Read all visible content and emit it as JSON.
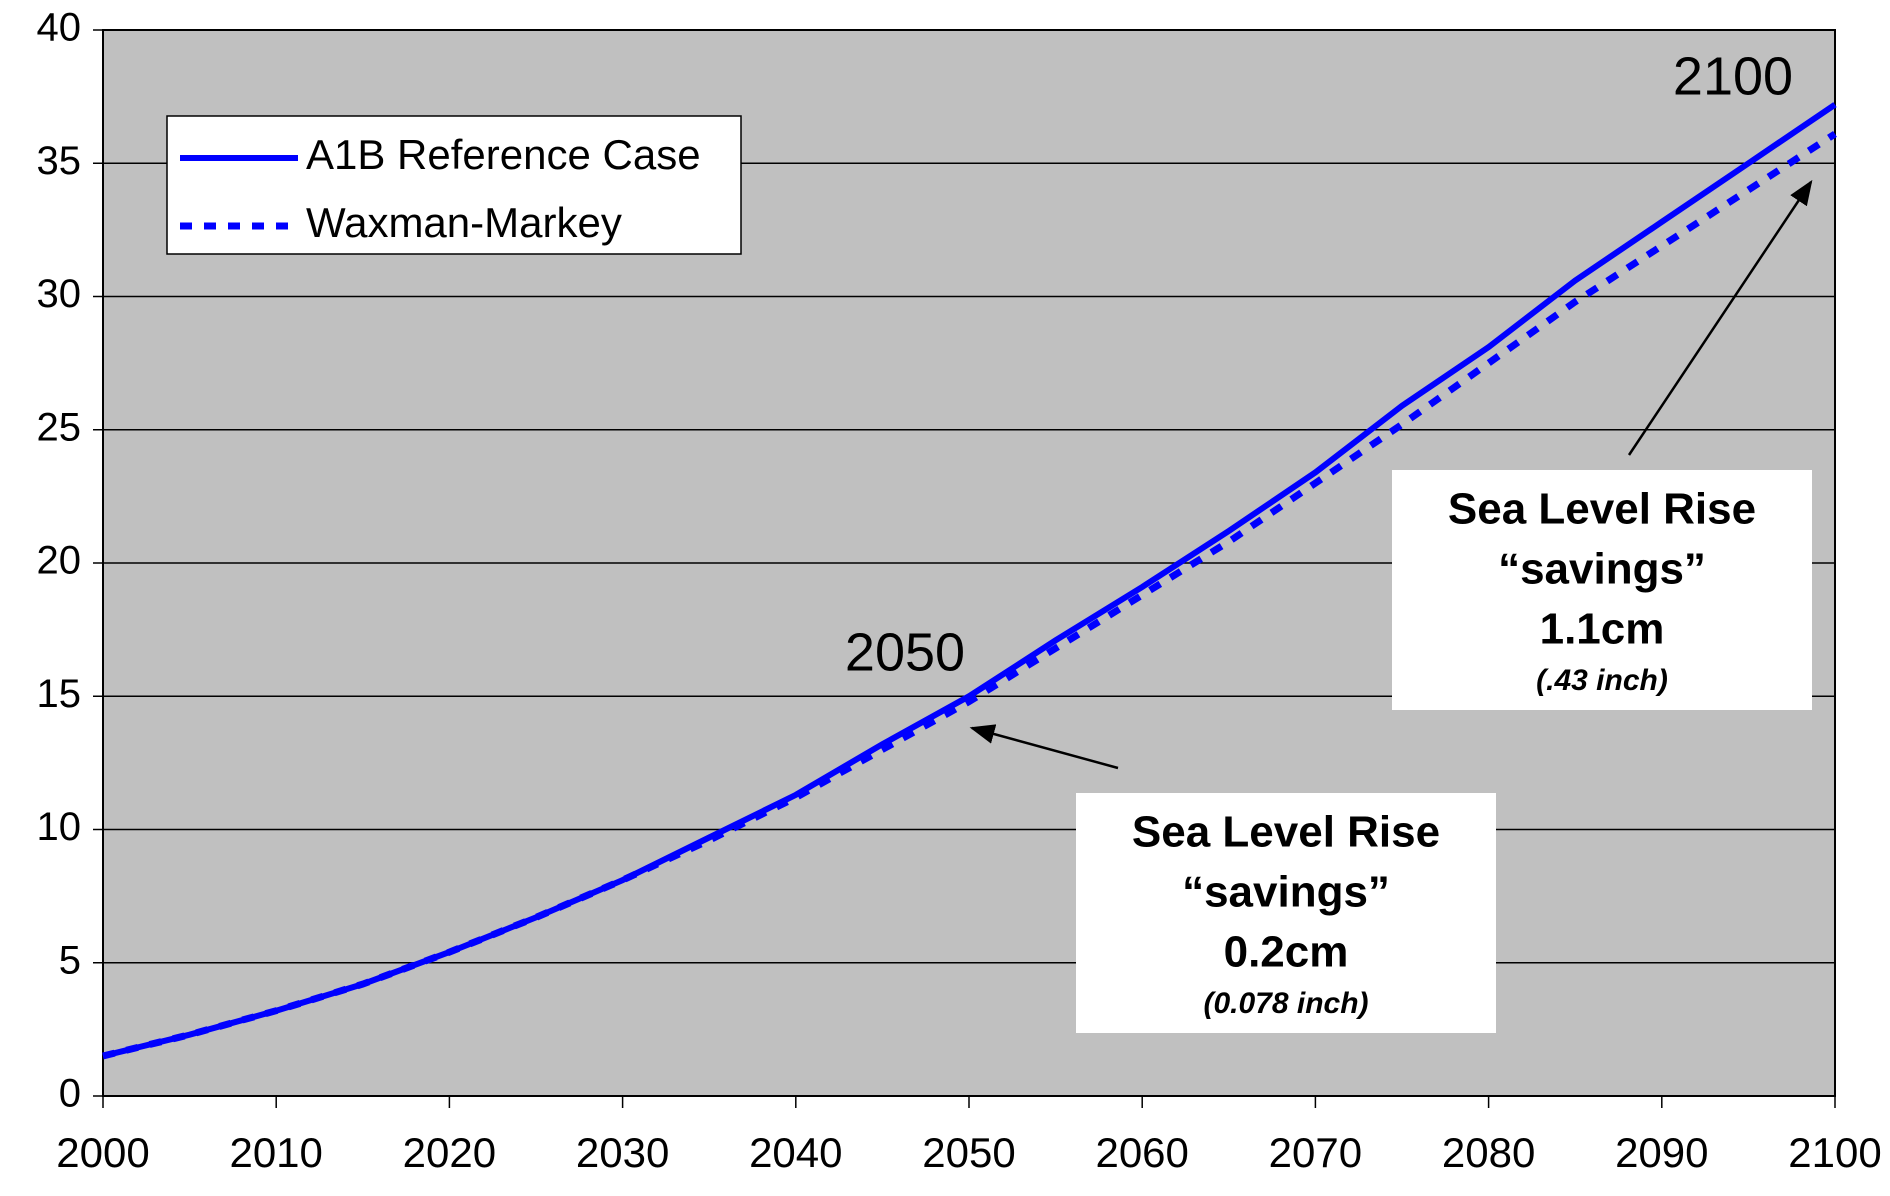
{
  "chart_data": {
    "type": "line",
    "x": [
      2000,
      2005,
      2010,
      2015,
      2020,
      2025,
      2030,
      2035,
      2040,
      2045,
      2050,
      2055,
      2060,
      2065,
      2070,
      2075,
      2080,
      2085,
      2090,
      2095,
      2100
    ],
    "series": [
      {
        "name": "A1B Reference Case",
        "color": "#0000ff",
        "dash": "solid",
        "values": [
          1.5,
          2.3,
          3.2,
          4.2,
          5.4,
          6.7,
          8.1,
          9.7,
          11.3,
          13.2,
          15.0,
          17.1,
          19.1,
          21.2,
          23.4,
          25.9,
          28.1,
          30.6,
          32.8,
          35.0,
          37.2
        ]
      },
      {
        "name": "Waxman-Markey",
        "color": "#0000ff",
        "dash": "dashed",
        "values": [
          1.5,
          2.3,
          3.2,
          4.2,
          5.4,
          6.7,
          8.1,
          9.6,
          11.2,
          13.0,
          14.8,
          16.8,
          18.8,
          20.8,
          23.0,
          25.2,
          27.5,
          29.8,
          31.9,
          34.0,
          36.1
        ]
      }
    ],
    "xlim": [
      2000,
      2100
    ],
    "xticks": [
      2000,
      2010,
      2020,
      2030,
      2040,
      2050,
      2060,
      2070,
      2080,
      2090,
      2100
    ],
    "ylim": [
      0,
      40
    ],
    "yticks": [
      0,
      5,
      10,
      15,
      20,
      25,
      30,
      35,
      40
    ],
    "grid": true,
    "legend": "upper left",
    "background": "#c0c0c0",
    "annotations": [
      {
        "text": "2050"
      },
      {
        "text": "2100"
      },
      {
        "lines": [
          "Sea Level Rise",
          "“savings”",
          "0.2cm",
          "(0.078 inch)"
        ]
      },
      {
        "lines": [
          "Sea Level Rise",
          "“savings”",
          "1.1cm",
          "(.43 inch)"
        ]
      }
    ]
  }
}
